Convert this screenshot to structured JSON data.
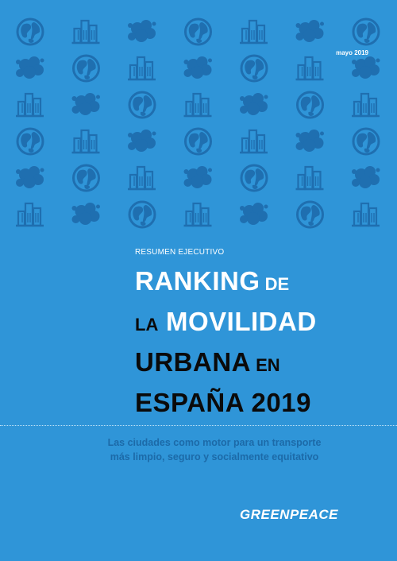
{
  "cover": {
    "date": "mayo 2019",
    "kicker": "RESUMEN EJECUTIVO",
    "title": {
      "line1_a": "RANKING",
      "line1_b": " DE",
      "line2_a": "LA",
      "line2_b": " MOVILIDAD",
      "line3_a": "URBANA",
      "line3_b": " EN",
      "line4_a": "ESPAÑA 2019"
    },
    "tagline_line1": "Las ciudades como motor para un transporte",
    "tagline_line2": "más limpio, seguro y socialmente equitativo",
    "logo": "GREENPEACE"
  },
  "pattern": {
    "icon_sequence": [
      "globe-icon",
      "city-buildings-icon",
      "smog-cloud-icon"
    ],
    "rows": 6,
    "cols": 7
  },
  "colors": {
    "background": "#2f95d8",
    "icon": "#1f6fb0",
    "title_white": "#ffffff",
    "title_black": "#0a0a0a",
    "tagline": "#1c6aa8"
  }
}
